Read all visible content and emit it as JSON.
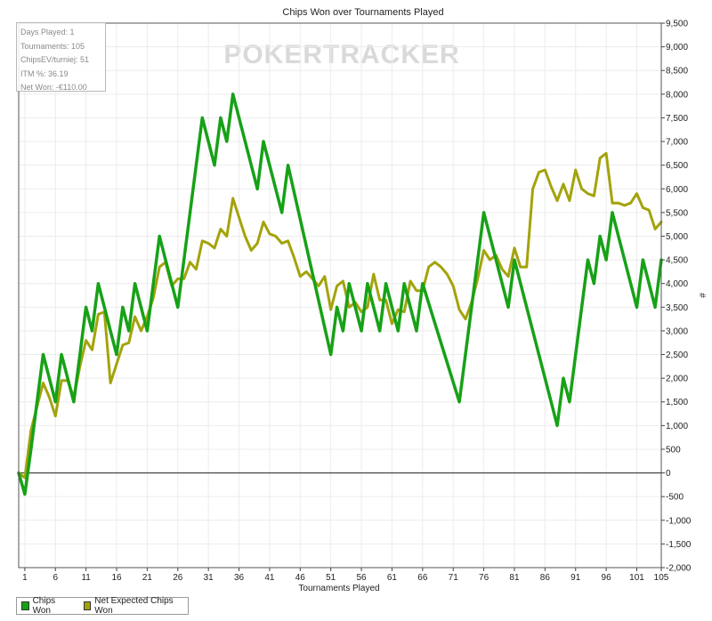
{
  "chart_data": {
    "type": "line",
    "title": "Chips Won over Tournaments Played",
    "xlabel": "Tournaments Played",
    "ylabel": "#",
    "watermark": [
      "PO",
      "KER",
      "TRACKER"
    ],
    "xlim": [
      0,
      105
    ],
    "ylim": [
      -2000,
      9500
    ],
    "x_ticks": [
      1,
      6,
      11,
      16,
      21,
      26,
      31,
      36,
      41,
      46,
      51,
      56,
      61,
      66,
      71,
      76,
      81,
      86,
      91,
      96,
      101,
      105
    ],
    "y_ticks": [
      -2000,
      -1500,
      -1000,
      -500,
      0,
      500,
      1000,
      1500,
      2000,
      2500,
      3000,
      3500,
      4000,
      4500,
      5000,
      5500,
      6000,
      6500,
      7000,
      7500,
      8000,
      8500,
      9000,
      9500
    ],
    "y_tick_labels": [
      "-2,000",
      "-1,500",
      "-1,000",
      "-500",
      "0",
      "500",
      "1,000",
      "1,500",
      "2,000",
      "2,500",
      "3,000",
      "3,500",
      "4,000",
      "4,500",
      "5,000",
      "5,500",
      "6,000",
      "6,500",
      "7,000",
      "7,500",
      "8,000",
      "8,500",
      "9,000",
      "9,500"
    ],
    "grid": true,
    "legend_position": "bottom-left",
    "series": [
      {
        "name": "Chips Won",
        "color": "#17a117",
        "points": [
          [
            0,
            0
          ],
          [
            1,
            -450
          ],
          [
            2,
            500
          ],
          [
            3,
            1500
          ],
          [
            4,
            2500
          ],
          [
            5,
            2000
          ],
          [
            6,
            1500
          ],
          [
            7,
            2500
          ],
          [
            8,
            2000
          ],
          [
            9,
            1500
          ],
          [
            10,
            2500
          ],
          [
            11,
            3500
          ],
          [
            12,
            3000
          ],
          [
            13,
            4000
          ],
          [
            14,
            3500
          ],
          [
            15,
            3000
          ],
          [
            16,
            2500
          ],
          [
            17,
            3500
          ],
          [
            18,
            3000
          ],
          [
            19,
            4000
          ],
          [
            20,
            3500
          ],
          [
            21,
            3000
          ],
          [
            22,
            4000
          ],
          [
            23,
            5000
          ],
          [
            24,
            4500
          ],
          [
            25,
            4000
          ],
          [
            26,
            3500
          ],
          [
            30,
            7500
          ],
          [
            32,
            6500
          ],
          [
            33,
            7500
          ],
          [
            34,
            7000
          ],
          [
            35,
            8000
          ],
          [
            39,
            6000
          ],
          [
            40,
            7000
          ],
          [
            43,
            5500
          ],
          [
            44,
            6500
          ],
          [
            51,
            2500
          ],
          [
            52,
            3500
          ],
          [
            53,
            3000
          ],
          [
            54,
            4000
          ],
          [
            55,
            3500
          ],
          [
            56,
            3000
          ],
          [
            57,
            4000
          ],
          [
            58,
            3500
          ],
          [
            59,
            3000
          ],
          [
            60,
            4000
          ],
          [
            61,
            3500
          ],
          [
            62,
            3000
          ],
          [
            63,
            4000
          ],
          [
            64,
            3500
          ],
          [
            65,
            3000
          ],
          [
            66,
            4000
          ],
          [
            72,
            1500
          ],
          [
            76,
            5500
          ],
          [
            80,
            3500
          ],
          [
            81,
            4500
          ],
          [
            88,
            1000
          ],
          [
            89,
            2000
          ],
          [
            90,
            1500
          ],
          [
            93,
            4500
          ],
          [
            94,
            4000
          ],
          [
            95,
            5000
          ],
          [
            96,
            4500
          ],
          [
            97,
            5500
          ],
          [
            101,
            3500
          ],
          [
            102,
            4500
          ],
          [
            104,
            3500
          ],
          [
            105,
            4500
          ]
        ]
      },
      {
        "name": "Net Expected Chips Won",
        "color": "#a3a30c",
        "points": [
          [
            0,
            0
          ],
          [
            1,
            -100
          ],
          [
            2,
            900
          ],
          [
            3,
            1400
          ],
          [
            4,
            1900
          ],
          [
            5,
            1600
          ],
          [
            6,
            1200
          ],
          [
            7,
            1950
          ],
          [
            8,
            1950
          ],
          [
            9,
            1600
          ],
          [
            10,
            2250
          ],
          [
            11,
            2800
          ],
          [
            12,
            2600
          ],
          [
            13,
            3350
          ],
          [
            14,
            3400
          ],
          [
            15,
            1900
          ],
          [
            16,
            2300
          ],
          [
            17,
            2700
          ],
          [
            18,
            2750
          ],
          [
            19,
            3300
          ],
          [
            20,
            3000
          ],
          [
            21,
            3300
          ],
          [
            22,
            3700
          ],
          [
            23,
            4350
          ],
          [
            24,
            4450
          ],
          [
            25,
            3950
          ],
          [
            26,
            4100
          ],
          [
            27,
            4100
          ],
          [
            28,
            4450
          ],
          [
            29,
            4300
          ],
          [
            30,
            4900
          ],
          [
            31,
            4850
          ],
          [
            32,
            4750
          ],
          [
            33,
            5150
          ],
          [
            34,
            5000
          ],
          [
            35,
            5800
          ],
          [
            36,
            5400
          ],
          [
            37,
            5000
          ],
          [
            38,
            4700
          ],
          [
            39,
            4850
          ],
          [
            40,
            5300
          ],
          [
            41,
            5050
          ],
          [
            42,
            5000
          ],
          [
            43,
            4850
          ],
          [
            44,
            4900
          ],
          [
            45,
            4550
          ],
          [
            46,
            4150
          ],
          [
            47,
            4250
          ],
          [
            48,
            4100
          ],
          [
            49,
            3950
          ],
          [
            50,
            4150
          ],
          [
            51,
            3450
          ],
          [
            52,
            3950
          ],
          [
            53,
            4050
          ],
          [
            54,
            3500
          ],
          [
            55,
            3600
          ],
          [
            56,
            3400
          ],
          [
            57,
            3500
          ],
          [
            58,
            4200
          ],
          [
            59,
            3650
          ],
          [
            60,
            3650
          ],
          [
            61,
            3150
          ],
          [
            62,
            3450
          ],
          [
            63,
            3400
          ],
          [
            64,
            4050
          ],
          [
            65,
            3850
          ],
          [
            66,
            3850
          ],
          [
            67,
            4350
          ],
          [
            68,
            4450
          ],
          [
            69,
            4350
          ],
          [
            70,
            4200
          ],
          [
            71,
            3950
          ],
          [
            72,
            3450
          ],
          [
            73,
            3250
          ],
          [
            74,
            3600
          ],
          [
            75,
            4100
          ],
          [
            76,
            4700
          ],
          [
            77,
            4500
          ],
          [
            78,
            4600
          ],
          [
            79,
            4300
          ],
          [
            80,
            4150
          ],
          [
            81,
            4750
          ],
          [
            82,
            4350
          ],
          [
            83,
            4350
          ],
          [
            84,
            6000
          ],
          [
            85,
            6350
          ],
          [
            86,
            6400
          ],
          [
            87,
            6050
          ],
          [
            88,
            5750
          ],
          [
            89,
            6100
          ],
          [
            90,
            5750
          ],
          [
            91,
            6400
          ],
          [
            92,
            6000
          ],
          [
            93,
            5900
          ],
          [
            94,
            5850
          ],
          [
            95,
            6650
          ],
          [
            96,
            6750
          ],
          [
            97,
            5700
          ],
          [
            98,
            5700
          ],
          [
            99,
            5650
          ],
          [
            100,
            5700
          ],
          [
            101,
            5900
          ],
          [
            102,
            5600
          ],
          [
            103,
            5550
          ],
          [
            104,
            5150
          ],
          [
            105,
            5300
          ]
        ]
      }
    ]
  },
  "stats": [
    "Days Played: 1",
    "Tournaments: 105",
    "ChipsEV/turniej: 51",
    "ITM %: 36.19",
    "Net Won: -€110.00"
  ]
}
